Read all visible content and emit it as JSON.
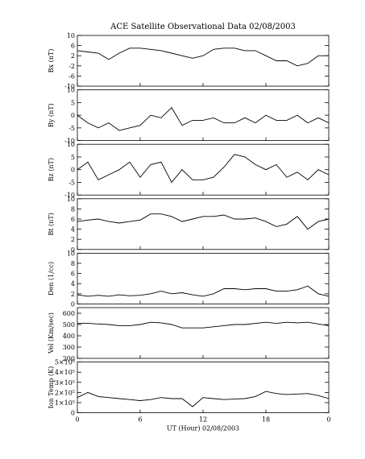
{
  "chart_data": [
    {
      "type": "line",
      "title": "ACE Satellite Observational Data   02/08/2003",
      "y_label": "Bx (nT)",
      "color": "#000000",
      "x": [
        0,
        1,
        2,
        3,
        4,
        5,
        6,
        7,
        8,
        9,
        10,
        11,
        12,
        13,
        14,
        15,
        16,
        17,
        18,
        19,
        20,
        21,
        22,
        23,
        24
      ],
      "values": [
        4,
        3.5,
        3,
        0.5,
        3,
        5,
        5,
        4.5,
        4,
        3,
        2,
        1,
        2,
        4.5,
        5,
        5,
        4,
        4,
        2,
        0,
        0,
        -2,
        -1,
        2,
        2
      ],
      "ylim": [
        -10,
        10
      ],
      "yticks": [
        -10,
        -6,
        -2,
        2,
        6,
        10
      ]
    },
    {
      "type": "line",
      "y_label": "By (nT)",
      "color": "#000000",
      "x": [
        0,
        1,
        2,
        3,
        4,
        5,
        6,
        7,
        8,
        9,
        10,
        11,
        12,
        13,
        14,
        15,
        16,
        17,
        18,
        19,
        20,
        21,
        22,
        23,
        24
      ],
      "values": [
        0,
        -3,
        -5,
        -3,
        -6,
        -5,
        -4,
        0,
        -1,
        3,
        -4,
        -2,
        -2,
        -1,
        -3,
        -3,
        -1,
        -3,
        0,
        -2,
        -2,
        0,
        -3,
        -1,
        -3
      ],
      "ylim": [
        -10,
        10
      ],
      "yticks": [
        -10,
        -5,
        0,
        5,
        10
      ]
    },
    {
      "type": "line",
      "y_label": "Bz (nT)",
      "color": "#000000",
      "x": [
        0,
        1,
        2,
        3,
        4,
        5,
        6,
        7,
        8,
        9,
        10,
        11,
        12,
        13,
        14,
        15,
        16,
        17,
        18,
        19,
        20,
        21,
        22,
        23,
        24
      ],
      "values": [
        0,
        3,
        -4,
        -2,
        0,
        3,
        -3,
        2,
        3,
        -5,
        0,
        -4,
        -4,
        -3,
        1,
        6,
        5,
        2,
        0,
        2,
        -3,
        -1,
        -4,
        0,
        -2
      ],
      "ylim": [
        -10,
        10
      ],
      "yticks": [
        -10,
        -5,
        0,
        5,
        10
      ]
    },
    {
      "type": "line",
      "y_label": "Bt (nT)",
      "color": "#000000",
      "x": [
        0,
        1,
        2,
        3,
        4,
        5,
        6,
        7,
        8,
        9,
        10,
        11,
        12,
        13,
        14,
        15,
        16,
        17,
        18,
        19,
        20,
        21,
        22,
        23,
        24
      ],
      "values": [
        5.5,
        5.8,
        6,
        5.5,
        5.2,
        5.5,
        5.8,
        7,
        7,
        6.5,
        5.5,
        6,
        6.5,
        6.5,
        6.8,
        6,
        6,
        6.2,
        5.5,
        4.5,
        5,
        6.5,
        4,
        5.5,
        6
      ],
      "ylim": [
        0,
        10
      ],
      "yticks": [
        0,
        2,
        4,
        6,
        8,
        10
      ]
    },
    {
      "type": "line",
      "y_label": "Den (1/cc)",
      "color": "#000000",
      "x": [
        0,
        1,
        2,
        3,
        4,
        5,
        6,
        7,
        8,
        9,
        10,
        11,
        12,
        13,
        14,
        15,
        16,
        17,
        18,
        19,
        20,
        21,
        22,
        23,
        24
      ],
      "values": [
        1.8,
        1.5,
        1.7,
        1.5,
        1.8,
        1.6,
        1.7,
        2,
        2.5,
        2,
        2.2,
        1.8,
        1.5,
        2,
        3,
        3,
        2.8,
        3,
        3,
        2.5,
        2.5,
        2.8,
        3.5,
        2,
        1.5
      ],
      "ylim": [
        0,
        10
      ],
      "yticks": [
        0,
        2,
        4,
        6,
        8,
        10
      ]
    },
    {
      "type": "line",
      "y_label": "Vel (Km/sec)",
      "color": "#000000",
      "x": [
        0,
        1,
        2,
        3,
        4,
        5,
        6,
        7,
        8,
        9,
        10,
        11,
        12,
        13,
        14,
        15,
        16,
        17,
        18,
        19,
        20,
        21,
        22,
        23,
        24
      ],
      "values": [
        510,
        510,
        505,
        500,
        490,
        490,
        500,
        520,
        515,
        500,
        470,
        470,
        470,
        480,
        490,
        500,
        500,
        510,
        520,
        510,
        520,
        515,
        520,
        505,
        490
      ],
      "ylim": [
        200,
        650
      ],
      "yticks": [
        200,
        300,
        400,
        500,
        600
      ]
    },
    {
      "type": "line",
      "y_label": "Ion Temp (K)",
      "x_label": "UT (Hour)  02/08/2003",
      "color": "#000000",
      "x": [
        0,
        1,
        2,
        3,
        4,
        5,
        6,
        7,
        8,
        9,
        10,
        11,
        12,
        13,
        14,
        15,
        16,
        17,
        18,
        19,
        20,
        21,
        22,
        23,
        24
      ],
      "values": [
        150000,
        200000,
        160000,
        150000,
        140000,
        130000,
        120000,
        130000,
        150000,
        140000,
        140000,
        60000,
        150000,
        140000,
        130000,
        135000,
        140000,
        160000,
        210000,
        190000,
        180000,
        185000,
        190000,
        170000,
        140000
      ],
      "ylim": [
        0,
        500000
      ],
      "yticks": [
        {
          "value": 0,
          "label": "0"
        },
        {
          "value": 100000,
          "label": "1×10⁵"
        },
        {
          "value": 200000,
          "label": "2×10⁵"
        },
        {
          "value": 300000,
          "label": "3×10⁵"
        },
        {
          "value": 400000,
          "label": "4×10⁵"
        },
        {
          "value": 500000,
          "label": "5×10⁵"
        }
      ],
      "xlim": [
        0,
        24
      ],
      "xticks": [
        0,
        6,
        12,
        18,
        {
          "value": 24,
          "label": "0"
        }
      ]
    }
  ]
}
